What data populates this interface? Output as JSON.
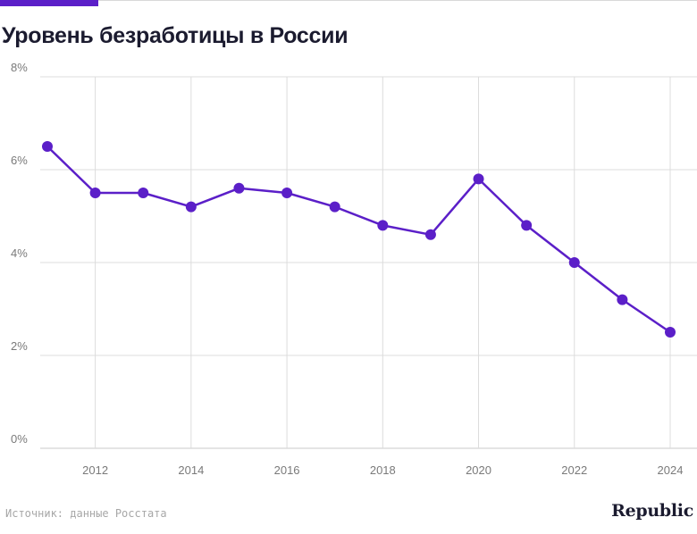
{
  "colors": {
    "accent": "#5b1fc8",
    "grid": "#dcdcdc",
    "text": "#1b1b2f",
    "tick": "#7a7a7a"
  },
  "header": {
    "title": "Уровень безработицы в России"
  },
  "footer": {
    "source": "Источник: данные Росстата",
    "logo": "Republic"
  },
  "chart_data": {
    "type": "line",
    "title": "Уровень безработицы в России",
    "xlabel": "",
    "ylabel": "",
    "x": [
      2011,
      2012,
      2013,
      2014,
      2015,
      2016,
      2017,
      2018,
      2019,
      2020,
      2021,
      2022,
      2023,
      2024
    ],
    "series": [
      {
        "values": [
          6.5,
          5.5,
          5.5,
          5.2,
          5.6,
          5.5,
          5.2,
          4.8,
          4.6,
          5.8,
          4.8,
          4.0,
          3.2,
          2.5
        ]
      }
    ],
    "xlim": [
      2011,
      2024
    ],
    "ylim": [
      0,
      8
    ],
    "xticks": [
      "2012",
      "2014",
      "2016",
      "2018",
      "2020",
      "2022",
      "2024"
    ],
    "yticks": [
      "0%",
      "2%",
      "4%",
      "6%",
      "8%"
    ],
    "grid": true,
    "legend": "none"
  }
}
